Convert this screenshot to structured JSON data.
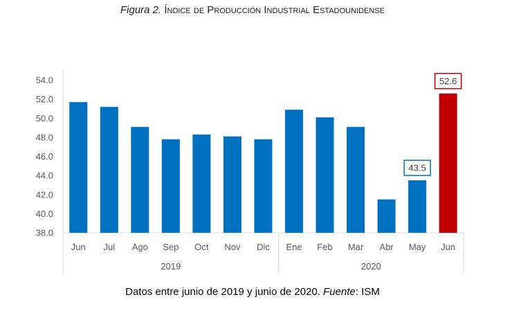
{
  "figure": {
    "label": "Figura 2.",
    "title": "Índice de Producción Industrial Estadounidense"
  },
  "caption": {
    "text": "Datos entre junio de 2019 y junio de 2020.",
    "source_label": "Fuente",
    "source_value": ": ISM"
  },
  "chart_data": {
    "type": "bar",
    "categories": [
      "Jun",
      "Jul",
      "Ago",
      "Sep",
      "Oct",
      "Nov",
      "Dic",
      "Ene",
      "Feb",
      "Mar",
      "Abr",
      "May",
      "Jun"
    ],
    "groups": [
      {
        "label": "2019",
        "count": 7
      },
      {
        "label": "2020",
        "count": 6
      }
    ],
    "values": [
      51.7,
      51.2,
      49.1,
      47.8,
      48.3,
      48.1,
      47.8,
      50.9,
      50.1,
      49.1,
      41.5,
      43.5,
      52.6
    ],
    "colors": [
      "#0070C0",
      "#0070C0",
      "#0070C0",
      "#0070C0",
      "#0070C0",
      "#0070C0",
      "#0070C0",
      "#0070C0",
      "#0070C0",
      "#0070C0",
      "#0070C0",
      "#0070C0",
      "#C00000"
    ],
    "data_labels": [
      {
        "index": 11,
        "text": "43.5",
        "border_color": "#0070C0"
      },
      {
        "index": 12,
        "text": "52.6",
        "border_color": "#C00000"
      }
    ],
    "ylim": [
      38.0,
      54.0
    ],
    "yticks": [
      "38.0",
      "40.0",
      "42.0",
      "44.0",
      "46.0",
      "48.0",
      "50.0",
      "52.0",
      "54.0"
    ],
    "grid": false,
    "xlabel": "",
    "ylabel": ""
  }
}
